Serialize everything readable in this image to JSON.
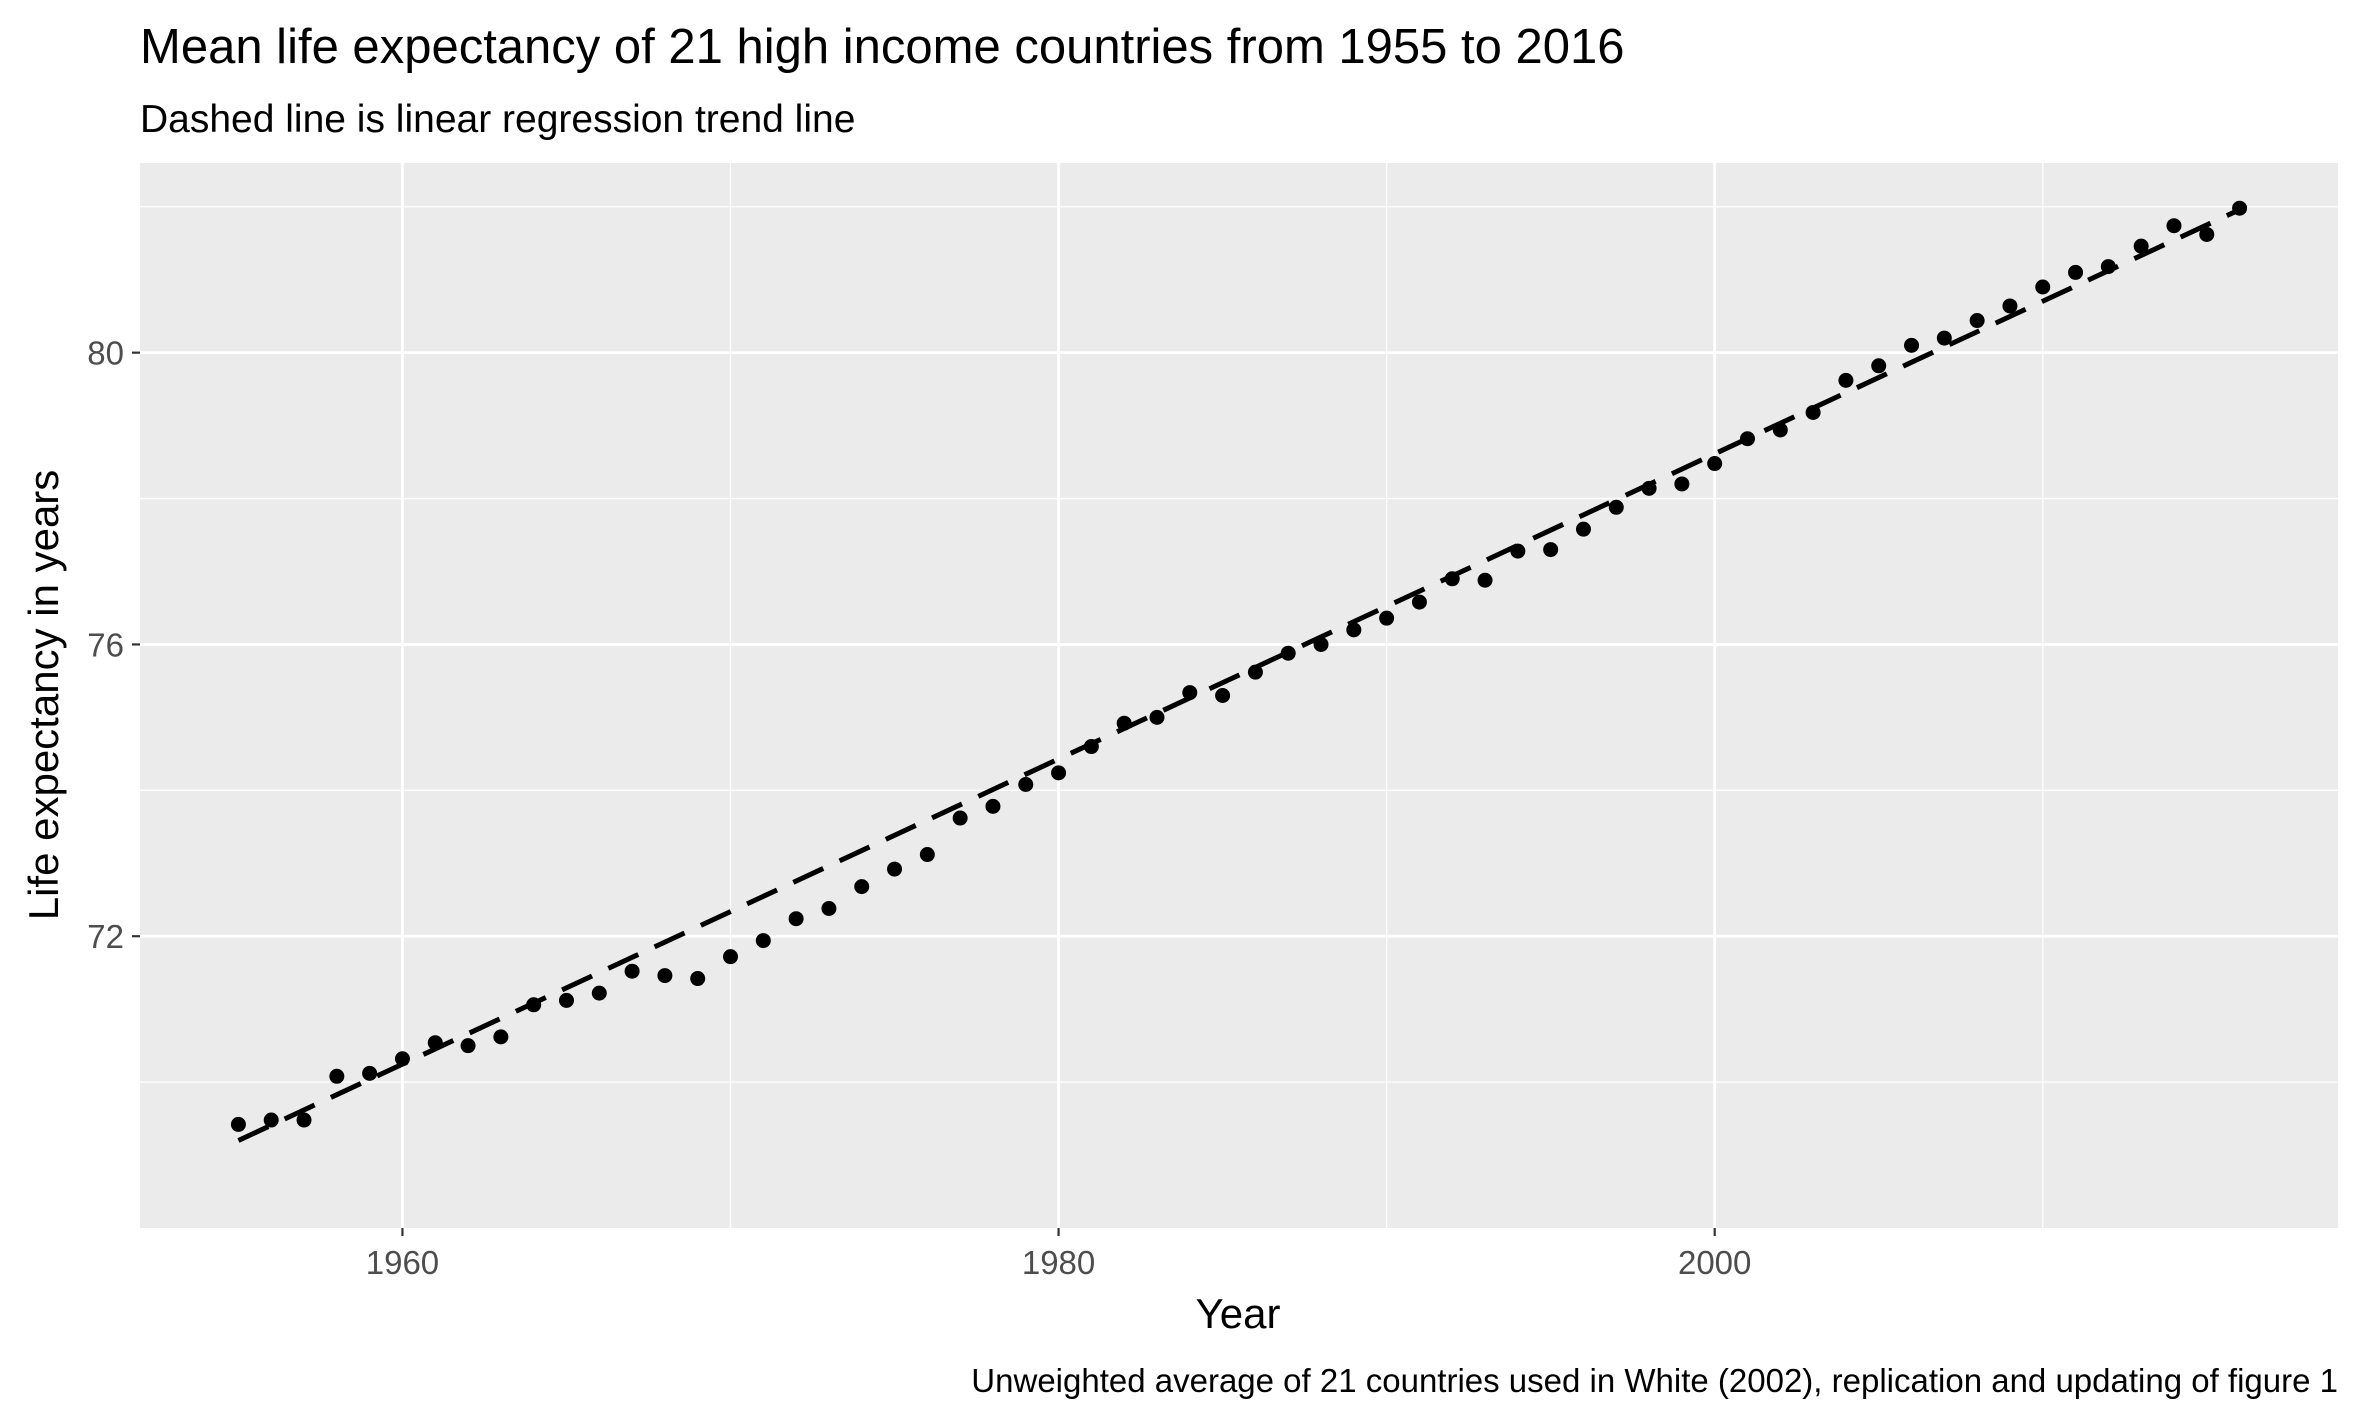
{
  "chart_data": {
    "type": "scatter",
    "title": "Mean life expectancy of 21 high income countries from 1955 to 2016",
    "subtitle": "Dashed line is linear regression trend line",
    "xlabel": "Year",
    "ylabel": "Life expectancy in years",
    "caption": "Unweighted average of 21 countries used in White (2002), replication and updating of figure 1",
    "xlim": [
      1952,
      2019
    ],
    "ylim": [
      68.0,
      82.6
    ],
    "x_ticks": [
      1960,
      1980,
      2000
    ],
    "y_ticks": [
      72,
      76,
      80
    ],
    "x_tick_labels": [
      "1960",
      "1980",
      "2000"
    ],
    "y_tick_labels": [
      "72",
      "76",
      "80"
    ],
    "grid": true,
    "legend": "none",
    "points": {
      "x": [
        1955,
        1956,
        1957,
        1958,
        1959,
        1960,
        1961,
        1962,
        1963,
        1964,
        1965,
        1966,
        1967,
        1968,
        1969,
        1970,
        1971,
        1972,
        1973,
        1974,
        1975,
        1976,
        1977,
        1978,
        1979,
        1980,
        1981,
        1982,
        1983,
        1984,
        1985,
        1986,
        1987,
        1988,
        1989,
        1990,
        1991,
        1992,
        1993,
        1994,
        1995,
        1996,
        1997,
        1998,
        1999,
        2000,
        2001,
        2002,
        2003,
        2004,
        2005,
        2006,
        2007,
        2008,
        2009,
        2010,
        2011,
        2012,
        2013,
        2014,
        2015,
        2016
      ],
      "y": [
        69.42,
        69.48,
        69.48,
        70.08,
        70.12,
        70.32,
        70.54,
        70.5,
        70.62,
        71.06,
        71.12,
        71.22,
        71.52,
        71.46,
        71.42,
        71.72,
        71.94,
        72.24,
        72.38,
        72.68,
        72.92,
        73.12,
        73.62,
        73.78,
        74.08,
        74.24,
        74.6,
        74.92,
        75.0,
        75.34,
        75.3,
        75.62,
        75.88,
        76.0,
        76.2,
        76.36,
        76.58,
        76.9,
        76.88,
        77.28,
        77.3,
        77.58,
        77.88,
        78.14,
        78.2,
        78.48,
        78.82,
        78.94,
        79.18,
        79.62,
        79.82,
        80.1,
        80.2,
        80.44,
        80.64,
        80.9,
        81.1,
        81.18,
        81.46,
        81.74,
        81.62,
        81.98
      ]
    },
    "trend": {
      "style": "dashed",
      "x": [
        1955,
        2016
      ],
      "y": [
        69.2,
        81.96
      ]
    },
    "colors": {
      "panel": "#ebebeb",
      "grid_major": "#ffffff",
      "points": "#000000",
      "trend": "#000000"
    }
  }
}
